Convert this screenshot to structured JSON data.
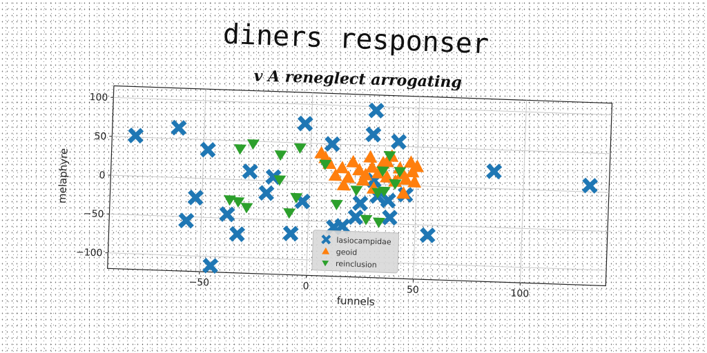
{
  "chart_data": {
    "type": "scatter",
    "title": "diners responser",
    "subtitle": "v A reneglect arrogating",
    "xlabel": "funnels",
    "ylabel": "melaphyre",
    "xlim": [
      -93,
      140
    ],
    "ylim": [
      -120,
      115
    ],
    "xticks": [
      -50,
      0,
      50,
      100
    ],
    "yticks": [
      100,
      50,
      0,
      -50,
      -100
    ],
    "grid": true,
    "legend_position": "bottom-center",
    "series": [
      {
        "name": "lasiocampidae",
        "marker": "X",
        "color": "#1f77b4",
        "points": [
          [
            -82,
            52
          ],
          [
            -62,
            64
          ],
          [
            -48,
            37
          ],
          [
            -28,
            11
          ],
          [
            -17,
            5
          ],
          [
            -20,
            -16
          ],
          [
            -53,
            -25
          ],
          [
            -57,
            -55
          ],
          [
            -38,
            -45
          ],
          [
            -33,
            -70
          ],
          [
            -45,
            -112
          ],
          [
            -8,
            -67
          ],
          [
            -3,
            -25
          ],
          [
            -3,
            75
          ],
          [
            10,
            50
          ],
          [
            30,
            95
          ],
          [
            29,
            64
          ],
          [
            41,
            56
          ],
          [
            86,
            22
          ],
          [
            131,
            8
          ],
          [
            30,
            5
          ],
          [
            32,
            -15
          ],
          [
            37,
            -20
          ],
          [
            38,
            -42
          ],
          [
            16,
            -55
          ],
          [
            12,
            -57
          ],
          [
            22,
            -43
          ],
          [
            56,
            -63
          ],
          [
            24,
            -25
          ],
          [
            45,
            -12
          ]
        ]
      },
      {
        "name": "geoid",
        "marker": "^",
        "color": "#ff7f0e",
        "points": [
          [
            5,
            38
          ],
          [
            7,
            32
          ],
          [
            9,
            25
          ],
          [
            12,
            10
          ],
          [
            15,
            20
          ],
          [
            18,
            8
          ],
          [
            20,
            28
          ],
          [
            23,
            18
          ],
          [
            25,
            5
          ],
          [
            28,
            35
          ],
          [
            29,
            22
          ],
          [
            32,
            15
          ],
          [
            34,
            28
          ],
          [
            36,
            10
          ],
          [
            38,
            37
          ],
          [
            40,
            5
          ],
          [
            42,
            22
          ],
          [
            44,
            -10
          ],
          [
            45,
            8
          ],
          [
            47,
            30
          ],
          [
            48,
            18
          ],
          [
            49,
            5
          ],
          [
            50,
            25
          ],
          [
            30,
            -5
          ],
          [
            26,
            12
          ],
          [
            16,
            -2
          ],
          [
            36,
            30
          ],
          [
            43,
            15
          ]
        ]
      },
      {
        "name": "reinclusion",
        "marker": "v",
        "color": "#2ca02c",
        "points": [
          [
            -33,
            40
          ],
          [
            -27,
            47
          ],
          [
            -14,
            34
          ],
          [
            -5,
            44
          ],
          [
            -14,
            2
          ],
          [
            -37,
            -26
          ],
          [
            -33,
            -28
          ],
          [
            -29,
            -35
          ],
          [
            -6,
            -20
          ],
          [
            -9,
            -40
          ],
          [
            7,
            24
          ],
          [
            13,
            -27
          ],
          [
            22,
            -8
          ],
          [
            27,
            -45
          ],
          [
            32,
            -10
          ],
          [
            33,
            -48
          ],
          [
            34,
            18
          ],
          [
            35,
            -8
          ],
          [
            37,
            38
          ],
          [
            40,
            2
          ],
          [
            42,
            18
          ]
        ]
      }
    ]
  }
}
